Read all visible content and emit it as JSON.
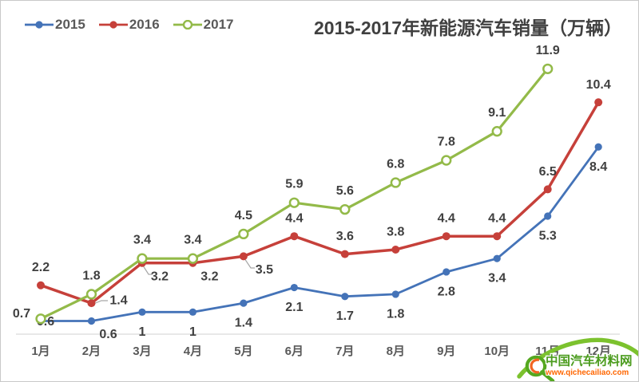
{
  "title": "2015-2017年新能源汽车销量（万辆）",
  "watermark": {
    "site_name": "中国汽车材料网",
    "site_url": "www.qichecailiao.com"
  },
  "chart_data": {
    "type": "line",
    "title": "2015-2017年新能源汽车销量（万辆）",
    "categories": [
      "1月",
      "2月",
      "3月",
      "4月",
      "5月",
      "6月",
      "7月",
      "8月",
      "9月",
      "10月",
      "11月",
      "12月"
    ],
    "ylabel": "万辆",
    "ylim": [
      0,
      13
    ],
    "grid": false,
    "legend_position": "top-left",
    "axis_color": "#d9d9d9",
    "data_label_color": "#404040",
    "tick_color": "#595959",
    "series": [
      {
        "name": "2015",
        "color": "#4473b8",
        "marker": "filled",
        "values": [
          0.6,
          0.6,
          1,
          1,
          1.4,
          2.1,
          1.7,
          1.8,
          2.8,
          3.4,
          5.3,
          8.4
        ]
      },
      {
        "name": "2016",
        "color": "#c6403a",
        "marker": "filled",
        "values": [
          2.2,
          1.4,
          3.2,
          3.2,
          3.5,
          4.4,
          3.6,
          3.8,
          4.4,
          4.4,
          6.5,
          10.4
        ]
      },
      {
        "name": "2017",
        "color": "#93ba49",
        "marker": "open",
        "values": [
          0.7,
          1.8,
          3.4,
          3.4,
          4.5,
          5.9,
          5.6,
          6.8,
          7.8,
          9.1,
          11.9
        ]
      }
    ]
  }
}
